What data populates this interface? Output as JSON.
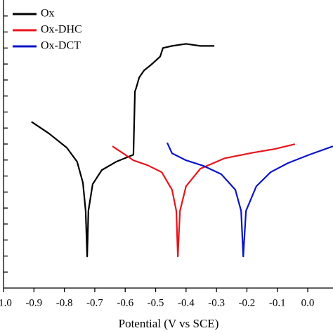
{
  "chart_data": {
    "type": "line",
    "x_label": "Potential (V vs SCE)",
    "xlim": [
      -1.0,
      0.083
    ],
    "xticks": [
      {
        "value": -1.0,
        "label": "-1.0"
      },
      -0.9,
      -0.8,
      -0.7,
      -0.6,
      -0.5,
      -0.4,
      -0.3,
      -0.2,
      -0.1,
      {
        "value": 0.0,
        "label": "0.0"
      }
    ],
    "ylim": [
      0,
      18
    ],
    "yticks": [
      1,
      2,
      3,
      4,
      5,
      6,
      7,
      8,
      9,
      10,
      11,
      12,
      13,
      14,
      15,
      16,
      17
    ],
    "legend": "top-left",
    "series": [
      {
        "name": "Ox",
        "color": "#000000",
        "x": [
          -0.908,
          -0.85,
          -0.792,
          -0.758,
          -0.739,
          -0.73,
          -0.725,
          -0.721,
          -0.707,
          -0.677,
          -0.63,
          -0.573,
          -0.568,
          -0.564,
          -0.554,
          -0.538,
          -0.515,
          -0.485,
          -0.476,
          -0.446,
          -0.4,
          -0.353,
          -0.307
        ],
        "values": [
          10.39,
          9.65,
          8.77,
          7.89,
          6.58,
          4.82,
          1.97,
          4.82,
          6.49,
          7.37,
          7.89,
          8.33,
          12.28,
          12.5,
          13.16,
          13.6,
          13.95,
          14.47,
          15.0,
          15.13,
          15.26,
          15.13,
          15.13
        ]
      },
      {
        "name": "Ox-DHC",
        "color": "#e8141b",
        "x": [
          -0.642,
          -0.607,
          -0.573,
          -0.527,
          -0.48,
          -0.446,
          -0.432,
          -0.427,
          -0.42,
          -0.4,
          -0.353,
          -0.273,
          -0.18,
          -0.111,
          -0.042
        ],
        "values": [
          8.86,
          8.42,
          7.98,
          7.68,
          7.24,
          6.14,
          4.82,
          1.97,
          4.82,
          6.36,
          7.46,
          8.11,
          8.46,
          8.68,
          8.99
        ]
      },
      {
        "name": "Ox-DCT",
        "color": "#0a14c8",
        "x": [
          -0.462,
          -0.446,
          -0.4,
          -0.342,
          -0.284,
          -0.238,
          -0.219,
          -0.212,
          -0.203,
          -0.169,
          -0.122,
          -0.065,
          0.005,
          0.083
        ],
        "values": [
          9.08,
          8.42,
          7.98,
          7.63,
          7.11,
          6.14,
          4.82,
          1.97,
          4.82,
          6.36,
          7.24,
          7.81,
          8.33,
          8.86
        ]
      }
    ]
  }
}
